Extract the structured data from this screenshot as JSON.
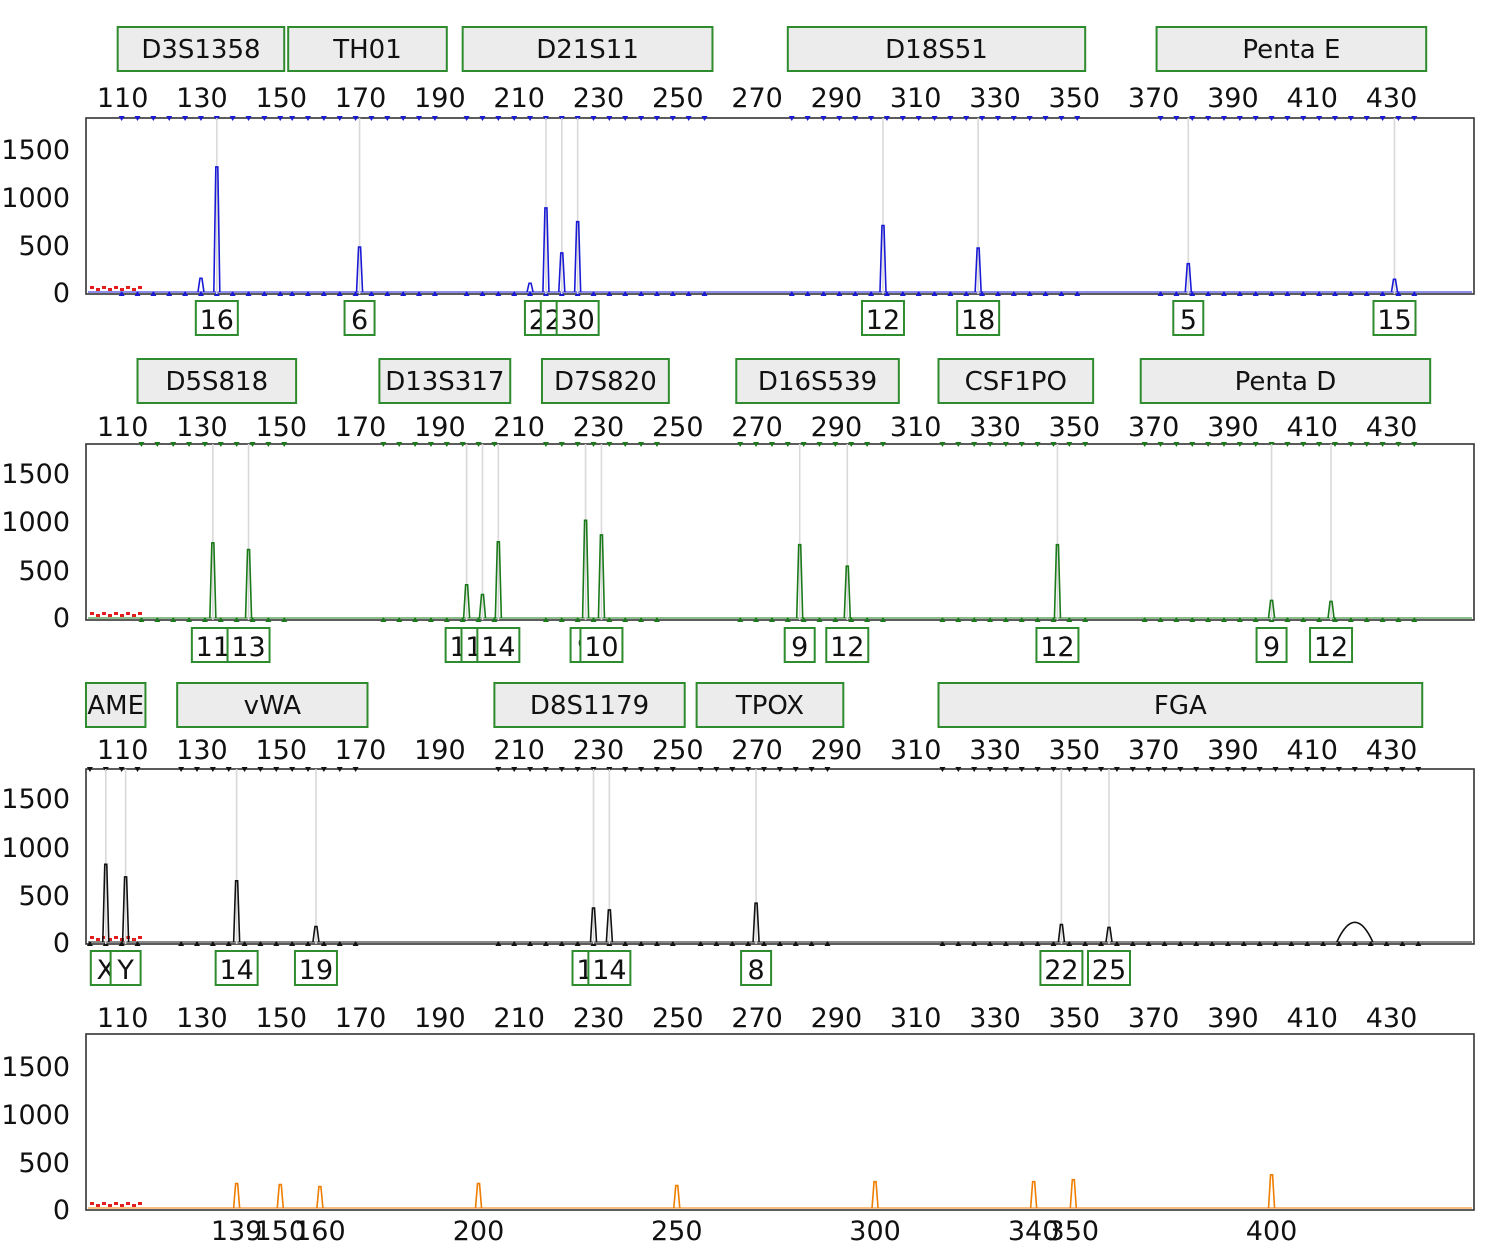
{
  "colors": {
    "blue": "#1a1ad6",
    "green": "#1a7a1a",
    "black": "#111111",
    "orange": "#ef7d00",
    "red_marker": "#e21d1d",
    "box_border": "#2e8b2e",
    "box_fill": "#ececec",
    "allele_line": "#d9d9d9",
    "frame": "#333333"
  },
  "chart_data": [
    {
      "type": "line",
      "channel": "blue",
      "xlim": [
        100,
        445
      ],
      "ylim": [
        0,
        1800
      ],
      "x_ticks": [
        110,
        130,
        150,
        170,
        190,
        210,
        230,
        250,
        270,
        290,
        310,
        330,
        350,
        370,
        390,
        410,
        430
      ],
      "y_ticks": [
        0,
        500,
        1000,
        1500
      ],
      "loci": [
        {
          "name": "D3S1358",
          "start": 109,
          "end": 151
        },
        {
          "name": "TH01",
          "start": 152,
          "end": 192
        },
        {
          "name": "D21S11",
          "start": 196,
          "end": 259
        },
        {
          "name": "D18S51",
          "start": 278,
          "end": 353
        },
        {
          "name": "Penta E",
          "start": 371,
          "end": 439
        }
      ],
      "peaks": [
        {
          "x": 130,
          "height": 160
        },
        {
          "x": 134,
          "height": 1300,
          "allele": "16"
        },
        {
          "x": 170,
          "height": 480,
          "allele": "6"
        },
        {
          "x": 213,
          "height": 110
        },
        {
          "x": 217,
          "height": 880,
          "allele": "28"
        },
        {
          "x": 221,
          "height": 420,
          "allele": "29"
        },
        {
          "x": 225,
          "height": 740,
          "allele": "30"
        },
        {
          "x": 302,
          "height": 700,
          "allele": "12"
        },
        {
          "x": 326,
          "height": 470,
          "allele": "18"
        },
        {
          "x": 379,
          "height": 310,
          "allele": "5"
        },
        {
          "x": 431,
          "height": 150,
          "allele": "15"
        }
      ]
    },
    {
      "type": "line",
      "channel": "green",
      "xlim": [
        100,
        445
      ],
      "ylim": [
        0,
        1800
      ],
      "x_ticks": [
        110,
        130,
        150,
        170,
        190,
        210,
        230,
        250,
        270,
        290,
        310,
        330,
        350,
        370,
        390,
        410,
        430
      ],
      "y_ticks": [
        0,
        500,
        1000,
        1500
      ],
      "loci": [
        {
          "name": "D5S818",
          "start": 114,
          "end": 154
        },
        {
          "name": "D13S317",
          "start": 175,
          "end": 208
        },
        {
          "name": "D7S820",
          "start": 216,
          "end": 248
        },
        {
          "name": "D16S539",
          "start": 265,
          "end": 306
        },
        {
          "name": "CSF1PO",
          "start": 316,
          "end": 355
        },
        {
          "name": "Penta D",
          "start": 367,
          "end": 440
        }
      ],
      "peaks": [
        {
          "x": 133,
          "height": 790,
          "allele": "11"
        },
        {
          "x": 142,
          "height": 720,
          "allele": "13"
        },
        {
          "x": 197,
          "height": 360,
          "allele": "12"
        },
        {
          "x": 201,
          "height": 260,
          "allele": "13"
        },
        {
          "x": 205,
          "height": 800,
          "allele": "14"
        },
        {
          "x": 227,
          "height": 1020,
          "allele": "9"
        },
        {
          "x": 231,
          "height": 870,
          "allele": "10"
        },
        {
          "x": 281,
          "height": 770,
          "allele": "9"
        },
        {
          "x": 293,
          "height": 550,
          "allele": "12"
        },
        {
          "x": 346,
          "height": 770,
          "allele": "12"
        },
        {
          "x": 400,
          "height": 200,
          "allele": "9"
        },
        {
          "x": 415,
          "height": 190,
          "allele": "12"
        }
      ]
    },
    {
      "type": "line",
      "channel": "black",
      "xlim": [
        100,
        445
      ],
      "ylim": [
        0,
        1800
      ],
      "x_ticks": [
        110,
        130,
        150,
        170,
        190,
        210,
        230,
        250,
        270,
        290,
        310,
        330,
        350,
        370,
        390,
        410,
        430
      ],
      "y_ticks": [
        0,
        500,
        1000,
        1500
      ],
      "loci": [
        {
          "name": "AME",
          "start": 101,
          "end": 116
        },
        {
          "name": "vWA",
          "start": 124,
          "end": 172
        },
        {
          "name": "D8S1179",
          "start": 204,
          "end": 252
        },
        {
          "name": "TPOX",
          "start": 255,
          "end": 292
        },
        {
          "name": "FGA",
          "start": 316,
          "end": 438
        }
      ],
      "peaks": [
        {
          "x": 106,
          "height": 820,
          "allele": "X"
        },
        {
          "x": 111,
          "height": 690,
          "allele": "Y"
        },
        {
          "x": 139,
          "height": 650,
          "allele": "14"
        },
        {
          "x": 159,
          "height": 180,
          "allele": "19"
        },
        {
          "x": 229,
          "height": 370,
          "allele": "13"
        },
        {
          "x": 233,
          "height": 350,
          "allele": "14"
        },
        {
          "x": 270,
          "height": 420,
          "allele": "8"
        },
        {
          "x": 347,
          "height": 200,
          "allele": "22"
        },
        {
          "x": 359,
          "height": 170,
          "allele": "25"
        },
        {
          "x": 421,
          "height": 220
        }
      ]
    },
    {
      "type": "line",
      "channel": "orange",
      "xlim": [
        100,
        445
      ],
      "ylim": [
        0,
        1800
      ],
      "x_ticks": [
        110,
        130,
        150,
        170,
        190,
        210,
        230,
        250,
        270,
        290,
        310,
        330,
        350,
        370,
        390,
        410,
        430
      ],
      "y_ticks": [
        0,
        500,
        1000,
        1500
      ],
      "ladder_labels": [
        "139",
        "150",
        "160",
        "200",
        "250",
        "300",
        "340",
        "350",
        "400"
      ],
      "peaks": [
        {
          "x": 139,
          "height": 270
        },
        {
          "x": 150,
          "height": 260
        },
        {
          "x": 160,
          "height": 240
        },
        {
          "x": 200,
          "height": 270
        },
        {
          "x": 250,
          "height": 250
        },
        {
          "x": 300,
          "height": 290
        },
        {
          "x": 340,
          "height": 290
        },
        {
          "x": 350,
          "height": 310
        },
        {
          "x": 400,
          "height": 360
        }
      ]
    }
  ]
}
